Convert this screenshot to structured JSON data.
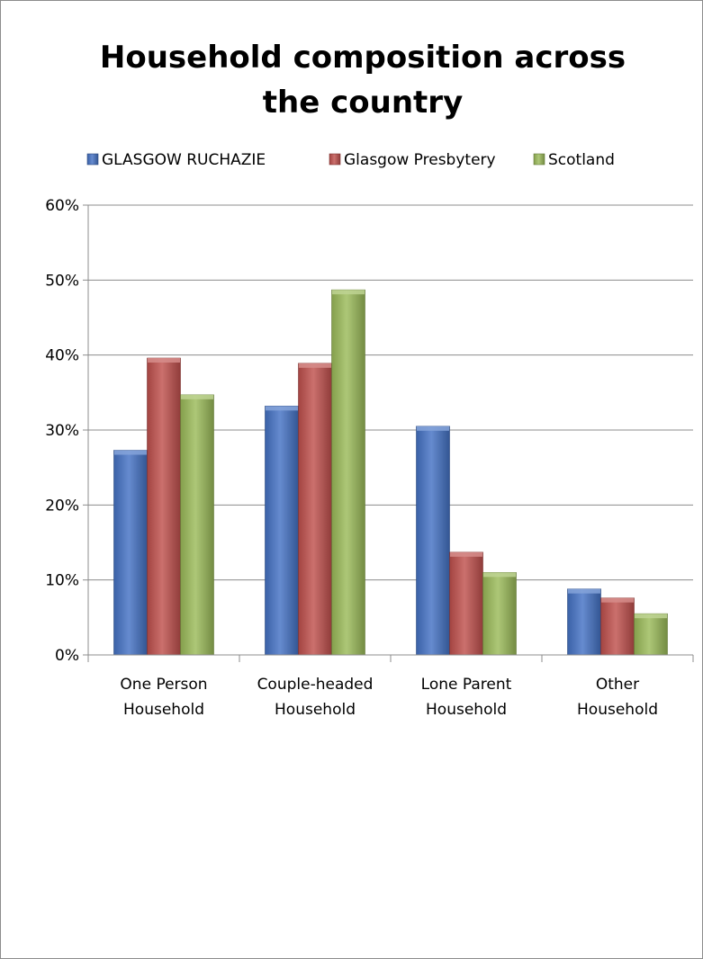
{
  "chart_data": {
    "type": "bar",
    "title_lines": [
      "Household composition across",
      "the country"
    ],
    "categories": [
      [
        "One Person",
        "Household"
      ],
      [
        "Couple-headed",
        "Household"
      ],
      [
        "Lone Parent",
        "Household"
      ],
      [
        "Other",
        "Household"
      ]
    ],
    "series": [
      {
        "name": "GLASGOW RUCHAZIE",
        "color": "#4472c4",
        "values": [
          27.3,
          33.2,
          30.5,
          8.8
        ]
      },
      {
        "name": "Glasgow Presbytery",
        "color": "#c0504d",
        "values": [
          39.6,
          38.9,
          13.7,
          7.6
        ]
      },
      {
        "name": "Scotland",
        "color": "#9bbb59",
        "values": [
          34.7,
          48.7,
          11.0,
          5.5
        ]
      }
    ],
    "y_ticks": [
      "0%",
      "10%",
      "20%",
      "30%",
      "40%",
      "50%",
      "60%"
    ],
    "ylim": [
      0,
      60
    ],
    "grid": true,
    "legend_position": "top"
  }
}
